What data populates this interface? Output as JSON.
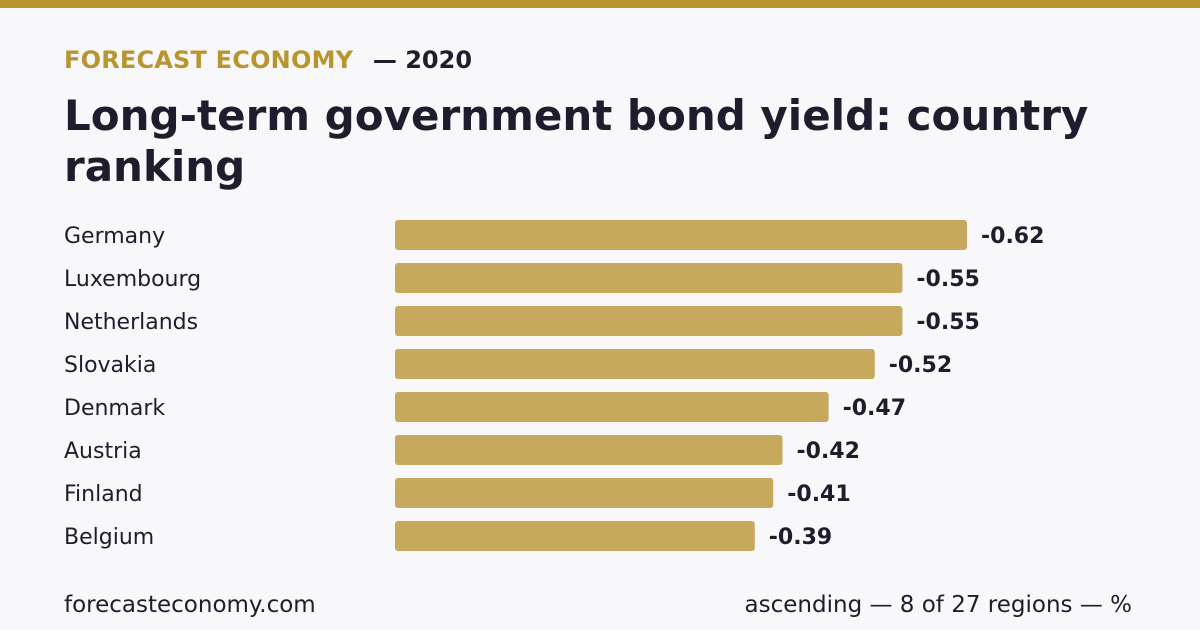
{
  "header": {
    "brand": "FORECAST ECONOMY",
    "year_label": "— 2020",
    "title": "Long-term government bond yield: country ranking"
  },
  "footer": {
    "site": "forecasteconomy.com",
    "note": "ascending — 8 of 27 regions — %"
  },
  "colors": {
    "accent": "#b9952f",
    "bar": "#c6a95c",
    "text": "#1d1d2d",
    "background": "#f8f8fb"
  },
  "chart_data": {
    "type": "bar",
    "orientation": "horizontal",
    "categories": [
      "Germany",
      "Luxembourg",
      "Netherlands",
      "Slovakia",
      "Denmark",
      "Austria",
      "Finland",
      "Belgium"
    ],
    "values": [
      -0.62,
      -0.55,
      -0.55,
      -0.52,
      -0.47,
      -0.42,
      -0.41,
      -0.39
    ],
    "value_labels": [
      "-0.62",
      "-0.55",
      "-0.55",
      "-0.52",
      "-0.47",
      "-0.42",
      "-0.41",
      "-0.39"
    ],
    "title": "Long-term government bond yield: country ranking",
    "unit": "%",
    "xlabel": "",
    "ylabel": "",
    "grid": false,
    "legend": "none"
  }
}
